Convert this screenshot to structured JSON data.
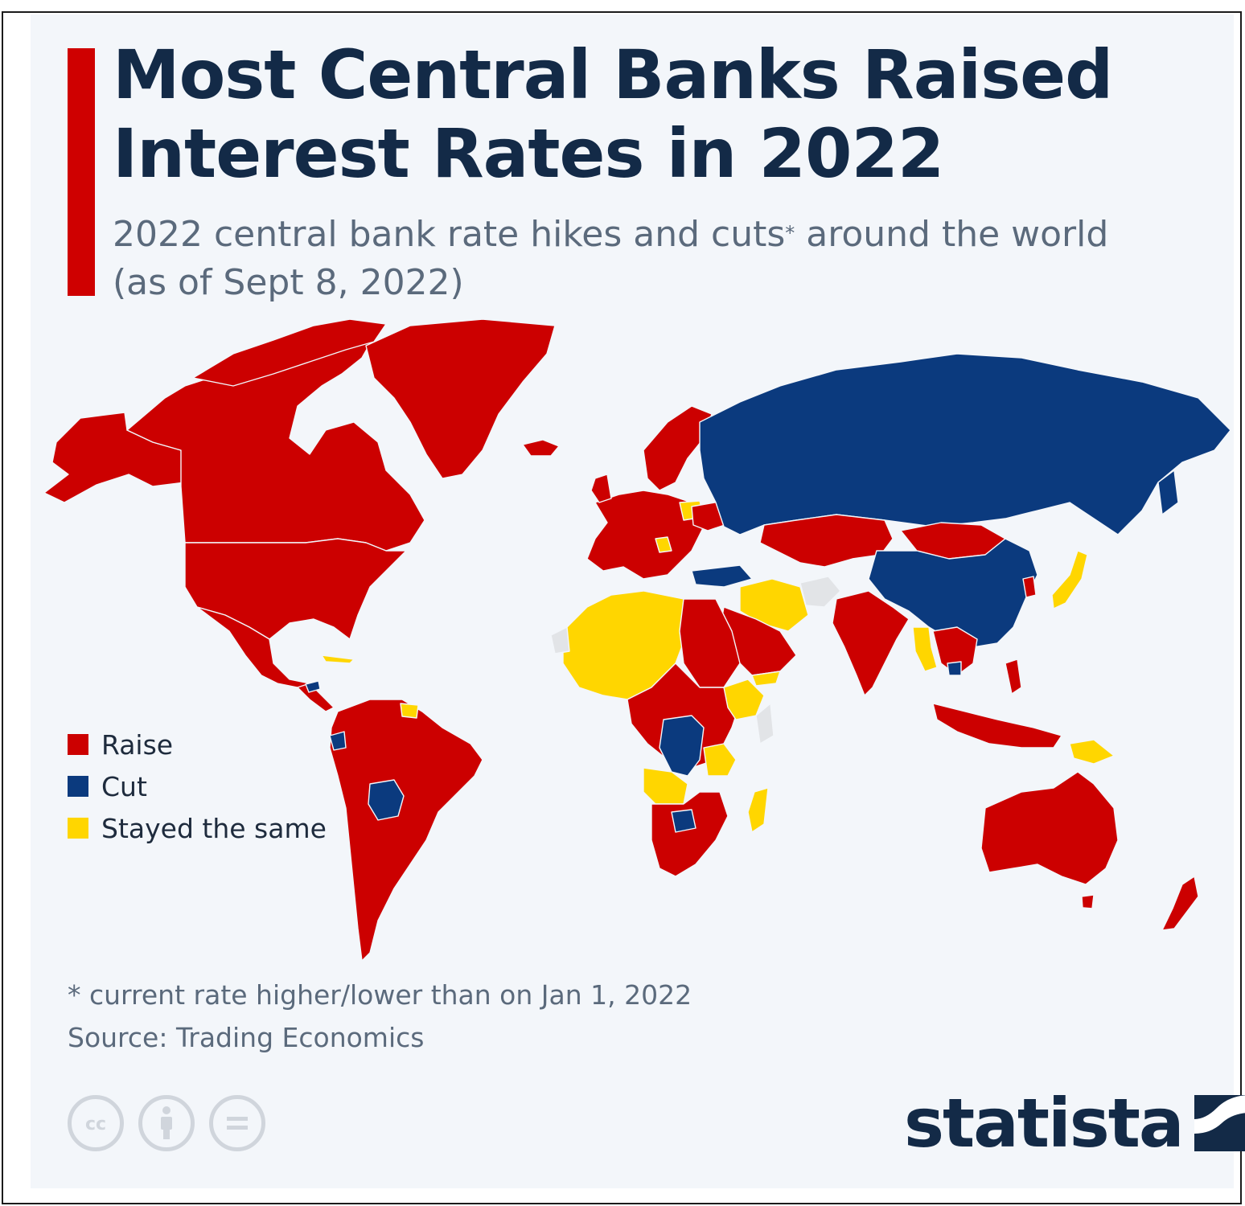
{
  "title": "Most Central Banks Raised Interest Rates in 2022",
  "subtitle_main": "2022 central bank rate hikes and cuts",
  "subtitle_marker": "*",
  "subtitle_tail": " around the world",
  "subtitle_date": "(as of Sept 8, 2022)",
  "legend": [
    {
      "label": "Raise",
      "color": "#cc0000"
    },
    {
      "label": "Cut",
      "color": "#0b3a7e"
    },
    {
      "label": "Stayed the same",
      "color": "#ffd600"
    }
  ],
  "footnote": "* current rate higher/lower than on Jan 1, 2022",
  "source": "Source: Trading Economics",
  "license_icons": [
    "creative-commons-icon",
    "attribution-icon",
    "no-derivatives-icon"
  ],
  "logo_text": "statista",
  "colors": {
    "raise": "#cc0000",
    "cut": "#0b3a7e",
    "same": "#ffd600",
    "no_data": "#e2e4e7",
    "accent": "#cf0000",
    "title": "#132a47"
  }
}
